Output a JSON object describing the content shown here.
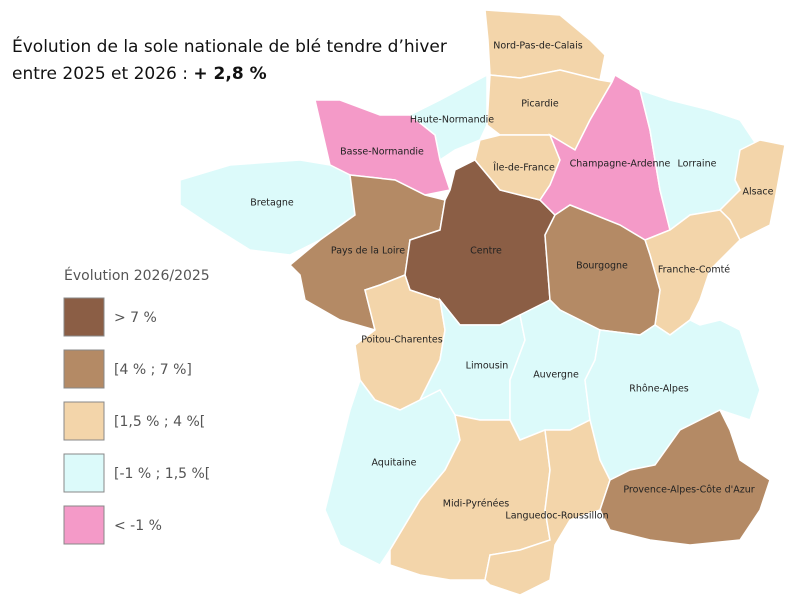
{
  "title_line1": "Évolution de la sole nationale de blé tendre d’hiver",
  "title_line2_prefix": "entre 2025 et 2026 : ",
  "title_line2_value": "+ 2,8 %",
  "legend": {
    "title": "Évolution 2026/2025",
    "items": [
      {
        "label": "> 7 %",
        "color": "#8b5e45"
      },
      {
        "label": "[4 % ; 7 %]",
        "color": "#b48a65"
      },
      {
        "label": "[1,5 % ; 4 %[",
        "color": "#f3d5aa"
      },
      {
        "label": "[-1 % ; 1,5 %[",
        "color": "#dcfafa"
      },
      {
        "label": "< -1 %",
        "color": "#f49ac8"
      }
    ]
  },
  "regions": [
    {
      "name": "Nord-Pas-de-Calais",
      "color": "#f3d5aa"
    },
    {
      "name": "Picardie",
      "color": "#f3d5aa"
    },
    {
      "name": "Haute-Normandie",
      "color": "#dcfafa"
    },
    {
      "name": "Basse-Normandie",
      "color": "#f49ac8"
    },
    {
      "name": "Bretagne",
      "color": "#dcfafa"
    },
    {
      "name": "Pays de la Loire",
      "color": "#b48a65"
    },
    {
      "name": "Centre",
      "color": "#8b5e45"
    },
    {
      "name": "Île-de-France",
      "color": "#f3d5aa"
    },
    {
      "name": "Champagne-Ardenne",
      "color": "#f49ac8"
    },
    {
      "name": "Lorraine",
      "color": "#dcfafa"
    },
    {
      "name": "Alsace",
      "color": "#f3d5aa"
    },
    {
      "name": "Franche-Comté",
      "color": "#f3d5aa"
    },
    {
      "name": "Bourgogne",
      "color": "#b48a65"
    },
    {
      "name": "Poitou-Charentes",
      "color": "#f3d5aa"
    },
    {
      "name": "Limousin",
      "color": "#dcfafa"
    },
    {
      "name": "Auvergne",
      "color": "#dcfafa"
    },
    {
      "name": "Rhône-Alpes",
      "color": "#dcfafa"
    },
    {
      "name": "Aquitaine",
      "color": "#dcfafa"
    },
    {
      "name": "Midi-Pyrénées",
      "color": "#f3d5aa"
    },
    {
      "name": "Languedoc-Roussillon",
      "color": "#f3d5aa"
    },
    {
      "name": "Provence-Alpes-Côte d'Azur",
      "color": "#b48a65"
    }
  ]
}
